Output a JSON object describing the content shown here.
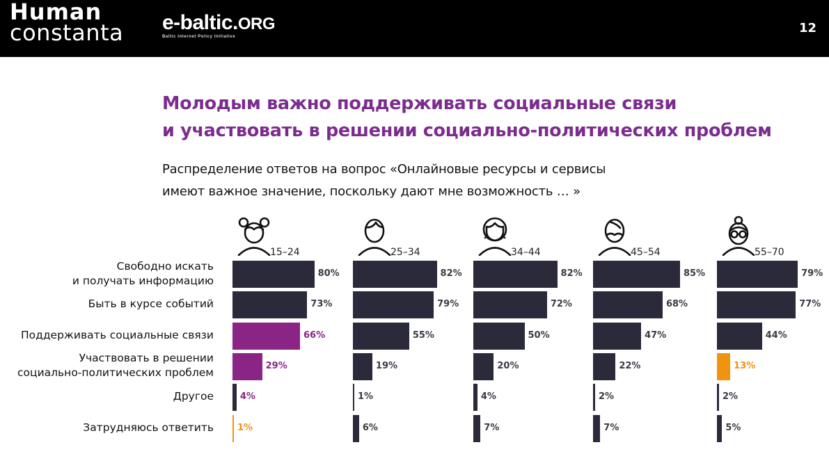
{
  "header": {
    "logo_left_line1": "Human",
    "logo_left_line2": "constanta",
    "logo_right_main": "e-baltic.",
    "logo_right_org": "ORG",
    "logo_right_sub": "Baltic Internet Policy Initiative",
    "page_number": "12"
  },
  "title": {
    "line1": "Молодым важно поддерживать социальные связи",
    "line2": "и участвовать в решении социально-политических проблем"
  },
  "subtitle": {
    "line1": "Распределение ответов на вопрос «Онлайновые ресурсы и сервисы",
    "line2": "имеют важное значение, поскольку дают мне возможность … »"
  },
  "colors": {
    "default_bar": "#2b2a3b",
    "highlight_purple": "#8b2585",
    "highlight_orange": "#f0930e",
    "label_default": "#3a3a44",
    "title": "#7b2d8e"
  },
  "chart_data": {
    "type": "bar",
    "orientation": "horizontal",
    "unit": "%",
    "title": "Распределение ответов на вопрос «Онлайновые ресурсы и сервисы имеют важное значение, поскольку дают мне возможность … »",
    "categories": [
      [
        "Свободно искать",
        "и получать информацию"
      ],
      [
        "Быть в курсе событий"
      ],
      [
        "Поддерживать социальные связи"
      ],
      [
        "Участвовать в решении",
        "социально-политических проблем"
      ],
      [
        "Другое"
      ],
      [
        "Затрудняюсь ответить"
      ]
    ],
    "series": [
      {
        "name": "15–24",
        "avatar": "girl-with-buns-icon",
        "values": [
          80,
          73,
          66,
          29,
          4,
          1
        ],
        "bar_colors": [
          "default",
          "default",
          "purple",
          "purple",
          "default",
          "orange"
        ],
        "label_colors": [
          "default",
          "default",
          "purple",
          "purple",
          "purple",
          "orange"
        ]
      },
      {
        "name": "25–34",
        "avatar": "young-man-icon",
        "values": [
          82,
          79,
          55,
          19,
          1,
          6
        ],
        "bar_colors": [
          "default",
          "default",
          "default",
          "default",
          "default",
          "default"
        ],
        "label_colors": [
          "default",
          "default",
          "default",
          "default",
          "default",
          "default"
        ]
      },
      {
        "name": "34–44",
        "avatar": "woman-with-earrings-icon",
        "values": [
          82,
          72,
          50,
          20,
          4,
          7
        ],
        "bar_colors": [
          "default",
          "default",
          "default",
          "default",
          "default",
          "default"
        ],
        "label_colors": [
          "default",
          "default",
          "default",
          "default",
          "default",
          "default"
        ]
      },
      {
        "name": "45–54",
        "avatar": "man-with-beard-icon",
        "values": [
          85,
          68,
          47,
          22,
          2,
          7
        ],
        "bar_colors": [
          "default",
          "default",
          "default",
          "default",
          "default",
          "default"
        ],
        "label_colors": [
          "default",
          "default",
          "default",
          "default",
          "default",
          "default"
        ]
      },
      {
        "name": "55–70",
        "avatar": "elderly-woman-with-glasses-icon",
        "values": [
          79,
          77,
          44,
          13,
          2,
          5
        ],
        "bar_colors": [
          "default",
          "default",
          "default",
          "orange",
          "default",
          "default"
        ],
        "label_colors": [
          "default",
          "default",
          "default",
          "orange",
          "default",
          "default"
        ]
      }
    ],
    "xlim": [
      0,
      100
    ],
    "grid": false,
    "legend": "none"
  }
}
